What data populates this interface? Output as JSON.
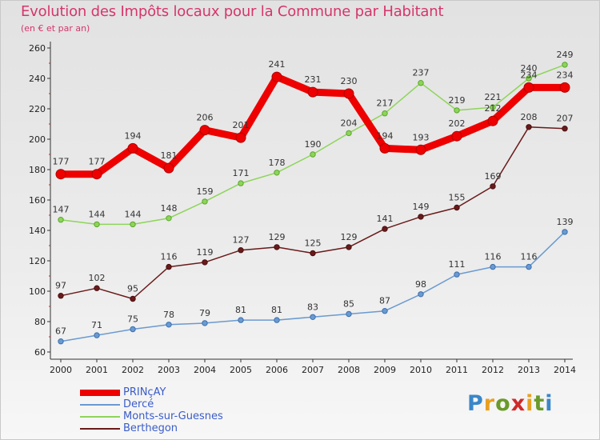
{
  "header": {
    "title": "Evolution des Impôts locaux pour la Commune par Habitant",
    "subtitle": "(en € et par an)"
  },
  "brand": {
    "text": "Proxiti"
  },
  "chart_data": {
    "type": "line",
    "title": "Evolution des Impôts locaux pour la Commune par Habitant",
    "subtitle": "(en € et par an)",
    "x": [
      2000,
      2001,
      2002,
      2003,
      2004,
      2005,
      2006,
      2007,
      2008,
      2009,
      2010,
      2011,
      2012,
      2013,
      2014
    ],
    "ylim": [
      60,
      260
    ],
    "yticks": [
      60,
      80,
      100,
      120,
      140,
      160,
      180,
      200,
      220,
      240,
      260
    ],
    "grid": false,
    "legend_position": "bottom-left",
    "series": [
      {
        "name": "PRINçAY",
        "color": "#ee0000",
        "values": [
          177,
          177,
          194,
          181,
          206,
          201,
          241,
          231,
          230,
          194,
          193,
          202,
          212,
          234,
          234
        ]
      },
      {
        "name": "Dercé",
        "color": "#6a9ad0",
        "values": [
          67,
          71,
          75,
          78,
          79,
          81,
          81,
          83,
          85,
          87,
          98,
          111,
          116,
          116,
          139
        ]
      },
      {
        "name": "Monts-sur-Guesnes",
        "color": "#8ed45a",
        "values": [
          147,
          144,
          144,
          148,
          159,
          171,
          178,
          190,
          204,
          217,
          237,
          219,
          221,
          240,
          249
        ]
      },
      {
        "name": "Berthegon",
        "color": "#6a1a1a",
        "values": [
          97,
          102,
          95,
          116,
          119,
          127,
          129,
          125,
          129,
          141,
          149,
          155,
          169,
          208,
          207
        ]
      }
    ]
  }
}
